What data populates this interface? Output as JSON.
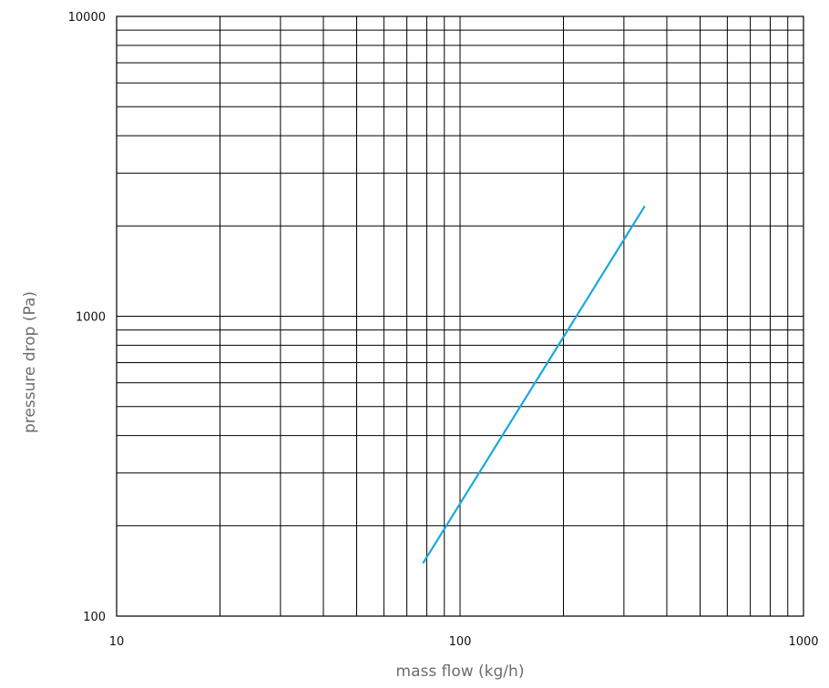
{
  "chart_data": {
    "type": "line",
    "title": "",
    "xlabel": "mass flow (kg/h)",
    "ylabel": "pressure drop (Pa)",
    "x_scale": "log",
    "y_scale": "log",
    "xlim": [
      10,
      1000
    ],
    "ylim": [
      100,
      10000
    ],
    "x_ticks": [
      10,
      100,
      1000
    ],
    "x_tick_labels": [
      "10",
      "100",
      "1000"
    ],
    "y_ticks": [
      100,
      1000,
      10000
    ],
    "y_tick_labels": [
      "100",
      "1000",
      "10000"
    ],
    "grid": true,
    "legend": "none",
    "series": [
      {
        "x": [
          78,
          345
        ],
        "y": [
          150,
          2330
        ],
        "color": "#1aa7dd"
      }
    ],
    "colors": {
      "grid": "#000000",
      "line": "#1aa7dd",
      "tick_text": "#111111",
      "axis_title": "#6d6d6d"
    }
  }
}
